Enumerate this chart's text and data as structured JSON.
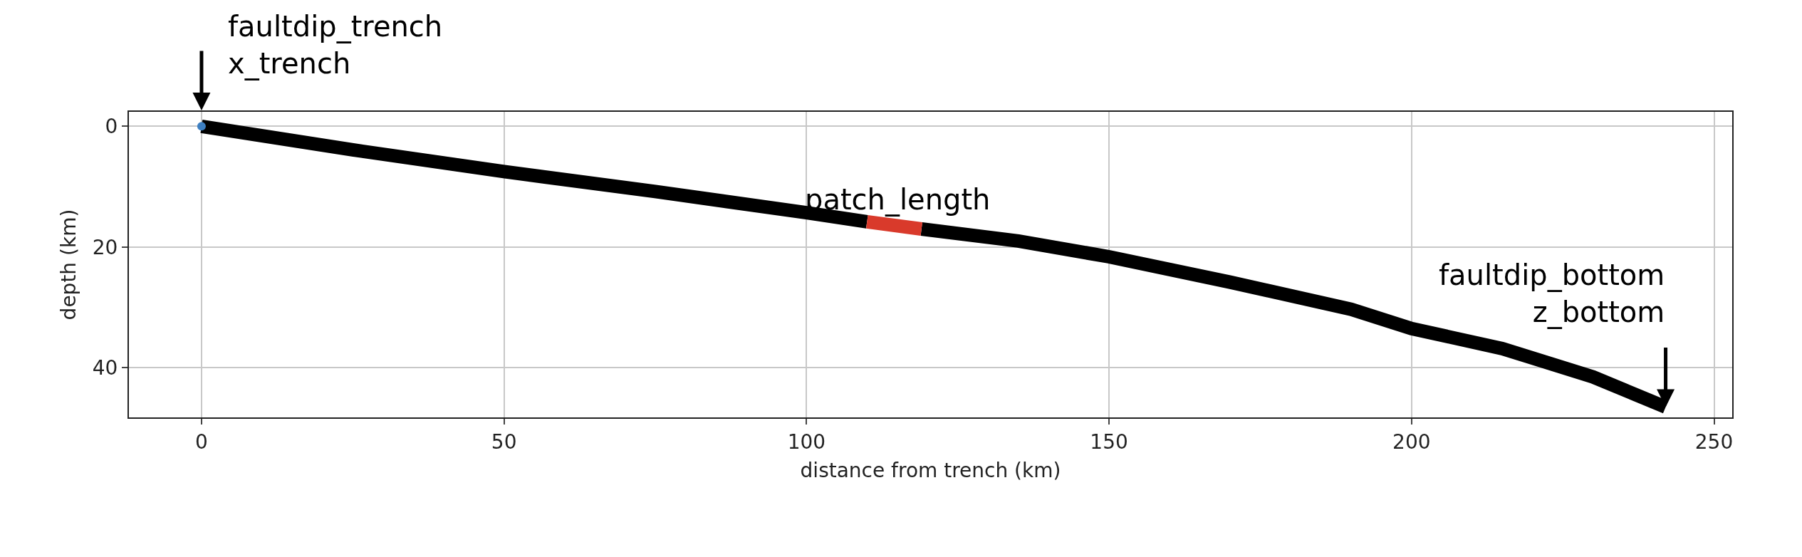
{
  "chart_data": {
    "type": "line",
    "xlabel": "distance from trench (km)",
    "ylabel": "depth (km)",
    "xlim": [
      -12,
      253
    ],
    "ylim": [
      48.2,
      -2.4
    ],
    "xticks": [
      0,
      50,
      100,
      150,
      200,
      250
    ],
    "yticks": [
      0,
      20,
      40
    ],
    "grid": true,
    "marker": "none",
    "series": [
      {
        "color": "#000000",
        "x": [
          0,
          25,
          50,
          75,
          100,
          110
        ],
        "values": [
          0,
          3.9,
          7.5,
          10.8,
          14.3,
          15.8
        ]
      },
      {
        "color": "#000000",
        "x": [
          119,
          135,
          150,
          170,
          190,
          200,
          215,
          230,
          242
        ],
        "values": [
          17.0,
          19.0,
          21.6,
          25.8,
          30.3,
          33.5,
          36.8,
          41.5,
          46.5
        ]
      },
      {
        "color": "#d93a2b",
        "x": [
          110,
          119
        ],
        "values": [
          15.8,
          17.0
        ]
      },
      {
        "type": "scatter",
        "color": "#3d7fc1",
        "marker": "circle",
        "x": [
          0
        ],
        "values": [
          0
        ]
      }
    ],
    "annotations": [
      {
        "text": "faultdip_trench\nx_trench",
        "x": 0,
        "y": 0
      },
      {
        "text": "patch_length",
        "x": 115,
        "y": 16.4
      },
      {
        "text": "faultdip_bottom\nz_bottom",
        "x": 242,
        "y": 46.5
      }
    ]
  }
}
